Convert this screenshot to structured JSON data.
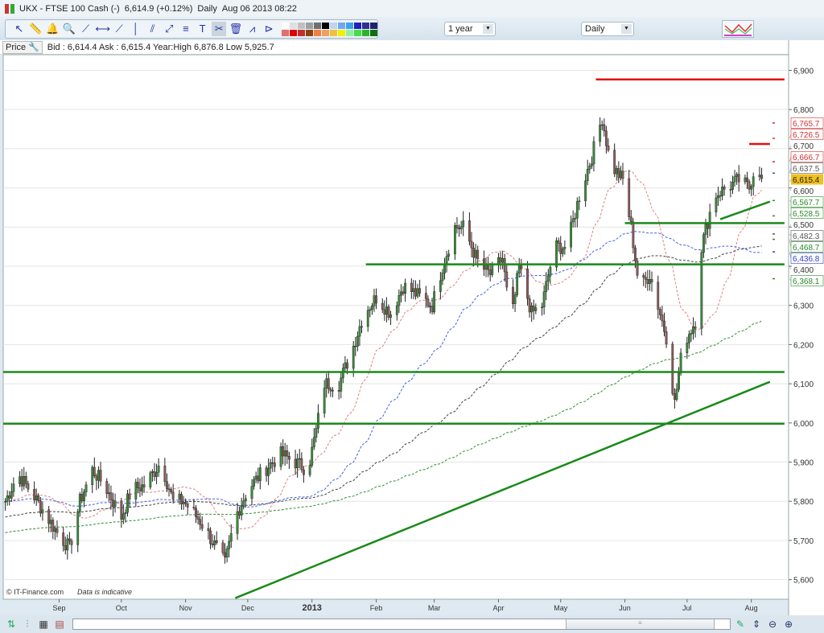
{
  "title": {
    "symbol": "UKX - FTSE 100 Cash (-)",
    "price": "6,614.9 (+0.12%)",
    "interval": "Daily",
    "datetime": "Aug 06 2013 08:22"
  },
  "toolbar": {
    "tools": [
      {
        "icon": "pointer-icon",
        "g": "↖"
      },
      {
        "icon": "ruler-icon",
        "g": "📏"
      },
      {
        "icon": "alert-bell-icon",
        "g": "🔔"
      },
      {
        "icon": "zoom-icon",
        "g": "🔍"
      },
      {
        "icon": "trend-line-icon",
        "g": "⟋"
      },
      {
        "icon": "horizontal-line-icon",
        "g": "⟷"
      },
      {
        "icon": "ray-line-icon",
        "g": "⟋"
      },
      {
        "icon": "vertical-line-icon",
        "g": "│"
      },
      {
        "icon": "parallel-lines-icon",
        "g": "⫽"
      },
      {
        "icon": "fibonacci-icon",
        "g": "⤢"
      },
      {
        "icon": "fib-retracement-icon",
        "g": "≡"
      },
      {
        "icon": "text-icon",
        "g": "T"
      },
      {
        "icon": "tools-icon",
        "g": "✂"
      },
      {
        "icon": "trash-icon",
        "g": "🗑"
      },
      {
        "icon": "line-pattern-icon",
        "g": "⩘"
      },
      {
        "icon": "triangle-pattern-icon",
        "g": "⊳"
      }
    ],
    "swatches": [
      "#ffffff",
      "#e0e0e0",
      "#c0c0c0",
      "#a0a0a0",
      "#707070",
      "#000000",
      "#c0d4f0",
      "#70a8f0",
      "#40a0f0",
      "#2020c0",
      "#303090",
      "#202070",
      "#e07070",
      "#e00000",
      "#c03030",
      "#904010",
      "#f08040",
      "#f0a060",
      "#f0c040",
      "#f0f000",
      "#90f0a0",
      "#40e040",
      "#30b030",
      "#107010"
    ],
    "period": "1 year",
    "interval": "Daily"
  },
  "price_row": {
    "label": "Price",
    "info": "Bid : 6,614.4 Ask : 6,615.4 Year:High 6,876.8 Low 5,925.7"
  },
  "footer": {
    "copyright": "© IT-Finance.com",
    "disclaimer": "Data is indicative"
  },
  "chart_data": {
    "type": "candlestick",
    "ylim": [
      5550,
      6940
    ],
    "yticks": [
      5600,
      5700,
      5800,
      5900,
      6000,
      6100,
      6200,
      6300,
      6400,
      6500,
      6600,
      6700,
      6800,
      6900
    ],
    "ytick_labels": [
      "5,600",
      "5,700",
      "5,800",
      "5,900",
      "6,000",
      "6,100",
      "6,200",
      "6,300",
      "6,400",
      "6,500",
      "6,600",
      "6,700",
      "6,800",
      "6,900"
    ],
    "xlim": [
      "2012-08-05",
      "2013-08-19"
    ],
    "xticks": [
      {
        "date": "2012-09-01",
        "label": "Sep"
      },
      {
        "date": "2012-10-01",
        "label": "Oct"
      },
      {
        "date": "2012-11-01",
        "label": "Nov"
      },
      {
        "date": "2012-12-01",
        "label": "Dec"
      },
      {
        "date": "2013-01-01",
        "label": "2013"
      },
      {
        "date": "2013-02-01",
        "label": "Feb"
      },
      {
        "date": "2013-03-01",
        "label": "Mar"
      },
      {
        "date": "2013-04-01",
        "label": "Apr"
      },
      {
        "date": "2013-05-01",
        "label": "May"
      },
      {
        "date": "2013-06-01",
        "label": "Jun"
      },
      {
        "date": "2013-07-01",
        "label": "Jul"
      },
      {
        "date": "2013-08-01",
        "label": "Aug"
      }
    ],
    "grid": "horizontal",
    "close_path": [
      [
        "2012-08-06",
        5800
      ],
      [
        "2012-08-12",
        5870
      ],
      [
        "2012-08-19",
        5820
      ],
      [
        "2012-08-31",
        5720
      ],
      [
        "2012-09-06",
        5680
      ],
      [
        "2012-09-11",
        5800
      ],
      [
        "2012-09-17",
        5880
      ],
      [
        "2012-09-23",
        5840
      ],
      [
        "2012-10-01",
        5760
      ],
      [
        "2012-10-06",
        5830
      ],
      [
        "2012-10-12",
        5840
      ],
      [
        "2012-10-20",
        5900
      ],
      [
        "2012-10-26",
        5800
      ],
      [
        "2012-10-31",
        5800
      ],
      [
        "2012-11-08",
        5750
      ],
      [
        "2012-11-16",
        5680
      ],
      [
        "2012-11-20",
        5640
      ],
      [
        "2012-11-25",
        5760
      ],
      [
        "2012-12-01",
        5830
      ],
      [
        "2012-12-09",
        5880
      ],
      [
        "2012-12-17",
        5920
      ],
      [
        "2012-12-24",
        5900
      ],
      [
        "2012-12-30",
        5880
      ],
      [
        "2013-01-03",
        5980
      ],
      [
        "2013-01-07",
        6100
      ],
      [
        "2013-01-14",
        6100
      ],
      [
        "2013-01-20",
        6180
      ],
      [
        "2013-01-26",
        6280
      ],
      [
        "2013-02-01",
        6320
      ],
      [
        "2013-02-08",
        6280
      ],
      [
        "2013-02-14",
        6350
      ],
      [
        "2013-02-20",
        6330
      ],
      [
        "2013-02-28",
        6300
      ],
      [
        "2013-03-05",
        6400
      ],
      [
        "2013-03-11",
        6500
      ],
      [
        "2013-03-15",
        6500
      ],
      [
        "2013-03-23",
        6400
      ],
      [
        "2013-03-28",
        6380
      ],
      [
        "2013-04-03",
        6420
      ],
      [
        "2013-04-07",
        6250
      ],
      [
        "2013-04-11",
        6400
      ],
      [
        "2013-04-17",
        6280
      ],
      [
        "2013-04-22",
        6300
      ],
      [
        "2013-04-28",
        6450
      ],
      [
        "2013-05-04",
        6450
      ],
      [
        "2013-05-10",
        6580
      ],
      [
        "2013-05-16",
        6680
      ],
      [
        "2013-05-21",
        6780
      ],
      [
        "2013-05-25",
        6660
      ],
      [
        "2013-05-31",
        6620
      ],
      [
        "2013-06-04",
        6500
      ],
      [
        "2013-06-08",
        6340
      ],
      [
        "2013-06-13",
        6380
      ],
      [
        "2013-06-17",
        6300
      ],
      [
        "2013-06-21",
        6220
      ],
      [
        "2013-06-25",
        6050
      ],
      [
        "2013-06-29",
        6200
      ],
      [
        "2013-07-05",
        6260
      ],
      [
        "2013-07-08",
        6450
      ],
      [
        "2013-07-14",
        6580
      ],
      [
        "2013-07-20",
        6600
      ],
      [
        "2013-07-26",
        6620
      ],
      [
        "2013-07-31",
        6600
      ],
      [
        "2013-08-04",
        6680
      ],
      [
        "2013-08-06",
        6615
      ]
    ],
    "drawn_lines": [
      {
        "color": "#e01010",
        "from": [
          "2013-05-18",
          6876.8
        ],
        "to": [
          "2013-08-17",
          6876.8
        ]
      },
      {
        "color": "#e01010",
        "from": [
          "2013-07-31",
          6712
        ],
        "to": [
          "2013-08-10",
          6712
        ]
      },
      {
        "color": "#1a8a1a",
        "from": [
          "2013-01-27",
          6405
        ],
        "to": [
          "2013-08-17",
          6405
        ]
      },
      {
        "color": "#1a8a1a",
        "from": [
          "2013-06-01",
          6510
        ],
        "to": [
          "2013-08-17",
          6510
        ]
      },
      {
        "color": "#1a8a1a",
        "from": [
          "2012-08-05",
          6130
        ],
        "to": [
          "2013-08-17",
          6130
        ]
      },
      {
        "color": "#1a8a1a",
        "from": [
          "2012-08-05",
          5998
        ],
        "to": [
          "2013-08-17",
          5998
        ]
      },
      {
        "color": "#1a8a1a",
        "from": [
          "2012-11-25",
          5553
        ],
        "to": [
          "2013-08-10",
          6105
        ]
      },
      {
        "color": "#1a8a1a",
        "from": [
          "2013-07-17",
          6520
        ],
        "to": [
          "2013-08-10",
          6565
        ]
      }
    ],
    "moving_averages": [
      {
        "period": 20,
        "color": "#e08080"
      },
      {
        "period": 50,
        "color": "#4060e0"
      },
      {
        "period": 100,
        "color": "#404040"
      },
      {
        "period": 200,
        "color": "#309030"
      }
    ],
    "last_price": {
      "value": "6,615.4",
      "color": "#f0c020"
    },
    "value_labels": [
      {
        "value": 6765.7,
        "text": "6,765.7",
        "color": "#d03030"
      },
      {
        "value": 6726.5,
        "text": "6,726.5",
        "color": "#d03030"
      },
      {
        "value": 6666.7,
        "text": "6,666.7",
        "color": "#d03030"
      },
      {
        "value": 6637.5,
        "text": "6,637.5",
        "color": "#555555"
      },
      {
        "value": 6567.7,
        "text": "6,567.7",
        "color": "#2a8a2a"
      },
      {
        "value": 6528.5,
        "text": "6,528.5",
        "color": "#2a8a2a"
      },
      {
        "value": 6482.3,
        "text": "6,482.3",
        "color": "#555555"
      },
      {
        "value": 6468.7,
        "text": "6,468.7",
        "color": "#2a8a2a"
      },
      {
        "value": 6436.8,
        "text": "6,436.8",
        "color": "#3040c0"
      },
      {
        "value": 6368.1,
        "text": "6,368.1",
        "color": "#2a8a2a"
      }
    ]
  }
}
